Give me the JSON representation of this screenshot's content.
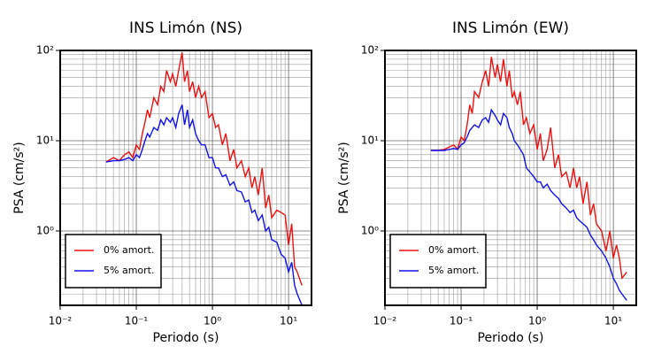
{
  "chart_data": [
    {
      "type": "line",
      "title": "INS Limón (NS)",
      "x_label": "Periodo (s)",
      "y_label": "PSA (cm/s²)",
      "x": [
        0.04,
        0.05,
        0.06,
        0.07,
        0.08,
        0.09,
        0.1,
        0.11,
        0.12,
        0.13,
        0.14,
        0.15,
        0.17,
        0.19,
        0.21,
        0.23,
        0.25,
        0.28,
        0.3,
        0.33,
        0.36,
        0.4,
        0.43,
        0.47,
        0.5,
        0.55,
        0.6,
        0.66,
        0.72,
        0.8,
        0.9,
        1.0,
        1.1,
        1.2,
        1.35,
        1.5,
        1.7,
        1.9,
        2.1,
        2.4,
        2.7,
        3,
        3.3,
        3.6,
        4,
        4.5,
        5,
        5.5,
        6,
        7,
        8,
        9,
        10,
        11,
        12,
        13,
        15
      ],
      "series": [
        {
          "name": "0% amort.",
          "color": "#ee1111",
          "values": [
            5.8,
            6.5,
            6,
            7,
            7.5,
            6.5,
            9,
            8,
            12,
            16,
            22,
            18,
            30,
            25,
            40,
            35,
            60,
            45,
            55,
            40,
            60,
            95,
            45,
            60,
            35,
            45,
            30,
            40,
            30,
            35,
            18,
            20,
            14,
            15,
            9,
            12,
            6,
            8,
            5,
            6,
            4,
            5,
            3,
            4,
            2.5,
            5,
            1.8,
            2.5,
            1.4,
            1.7,
            1.6,
            1.5,
            0.7,
            1.2,
            0.4,
            0.35,
            0.25
          ]
        },
        {
          "name": "5% amort.",
          "color": "#1111ee",
          "values": [
            5.8,
            6,
            6,
            6.2,
            6.5,
            6,
            7,
            6.5,
            8,
            10,
            12,
            11,
            14,
            13,
            17,
            15,
            18,
            16,
            18,
            14,
            20,
            25,
            15,
            22,
            14,
            17,
            12,
            10,
            9,
            9,
            6.5,
            6.5,
            5,
            5,
            4,
            4.2,
            3.2,
            3.5,
            2.8,
            2.7,
            2.1,
            2.2,
            1.6,
            1.7,
            1.3,
            1.5,
            1,
            1.1,
            0.8,
            0.75,
            0.55,
            0.5,
            0.35,
            0.45,
            0.25,
            0.2,
            0.15
          ]
        }
      ],
      "xlim": [
        0.01,
        20
      ],
      "ylim": [
        0.15,
        100
      ],
      "xticks": [
        {
          "value": 0.01,
          "label": "10⁻²"
        },
        {
          "value": 0.1,
          "label": "10⁻¹"
        },
        {
          "value": 1,
          "label": "10⁰"
        },
        {
          "value": 10,
          "label": "10¹"
        }
      ],
      "yticks": [
        {
          "value": 1,
          "label": "10⁰"
        },
        {
          "value": 10,
          "label": "10¹"
        },
        {
          "value": 100,
          "label": "10²"
        }
      ],
      "x_log": true,
      "y_log": true,
      "grid": true,
      "legend": "lower left"
    },
    {
      "type": "line",
      "title": "INS Limón (EW)",
      "x_label": "Periodo (s)",
      "y_label": "PSA (cm/s²)",
      "x": [
        0.04,
        0.05,
        0.06,
        0.07,
        0.08,
        0.09,
        0.1,
        0.11,
        0.12,
        0.13,
        0.14,
        0.15,
        0.17,
        0.19,
        0.21,
        0.23,
        0.25,
        0.28,
        0.3,
        0.33,
        0.36,
        0.4,
        0.43,
        0.47,
        0.5,
        0.55,
        0.6,
        0.66,
        0.72,
        0.8,
        0.9,
        1.0,
        1.1,
        1.2,
        1.35,
        1.5,
        1.7,
        1.9,
        2.1,
        2.4,
        2.7,
        3,
        3.3,
        3.6,
        4,
        4.5,
        5,
        5.5,
        6,
        7,
        8,
        9,
        10,
        11,
        12,
        13,
        15
      ],
      "series": [
        {
          "name": "0% amort.",
          "color": "#ee1111",
          "values": [
            7.8,
            7.8,
            8,
            8.5,
            9,
            8,
            11,
            10,
            15,
            25,
            20,
            35,
            30,
            45,
            60,
            40,
            85,
            50,
            70,
            45,
            80,
            40,
            60,
            30,
            35,
            25,
            35,
            15,
            18,
            12,
            15,
            8,
            12,
            6,
            8,
            14,
            5,
            7,
            4,
            4.5,
            3,
            5,
            3,
            4,
            2,
            3.5,
            1.5,
            2,
            1.2,
            1,
            0.6,
            1,
            0.5,
            0.7,
            0.5,
            0.3,
            0.35
          ]
        },
        {
          "name": "5% amort.",
          "color": "#1111ee",
          "values": [
            7.8,
            7.8,
            7.8,
            8,
            8.2,
            8,
            9,
            9.5,
            11,
            13,
            14,
            15,
            14,
            17,
            18,
            16,
            22,
            19,
            17,
            15,
            20,
            18,
            14,
            12,
            10,
            9,
            8,
            7,
            5,
            4.5,
            4,
            3.5,
            3.5,
            3,
            3.3,
            2.8,
            2.5,
            2.3,
            2,
            1.8,
            1.6,
            1.7,
            1.4,
            1.3,
            1.2,
            1.1,
            0.9,
            0.8,
            0.7,
            0.6,
            0.5,
            0.4,
            0.3,
            0.26,
            0.22,
            0.2,
            0.17
          ]
        }
      ],
      "xlim": [
        0.01,
        20
      ],
      "ylim": [
        0.15,
        100
      ],
      "xticks": [
        {
          "value": 0.01,
          "label": "10⁻²"
        },
        {
          "value": 0.1,
          "label": "10⁻¹"
        },
        {
          "value": 1,
          "label": "10⁰"
        },
        {
          "value": 10,
          "label": "10¹"
        }
      ],
      "yticks": [
        {
          "value": 1,
          "label": "10⁰"
        },
        {
          "value": 10,
          "label": "10¹"
        },
        {
          "value": 100,
          "label": "10²"
        }
      ],
      "x_log": true,
      "y_log": true,
      "grid": true,
      "legend": "lower left"
    }
  ]
}
